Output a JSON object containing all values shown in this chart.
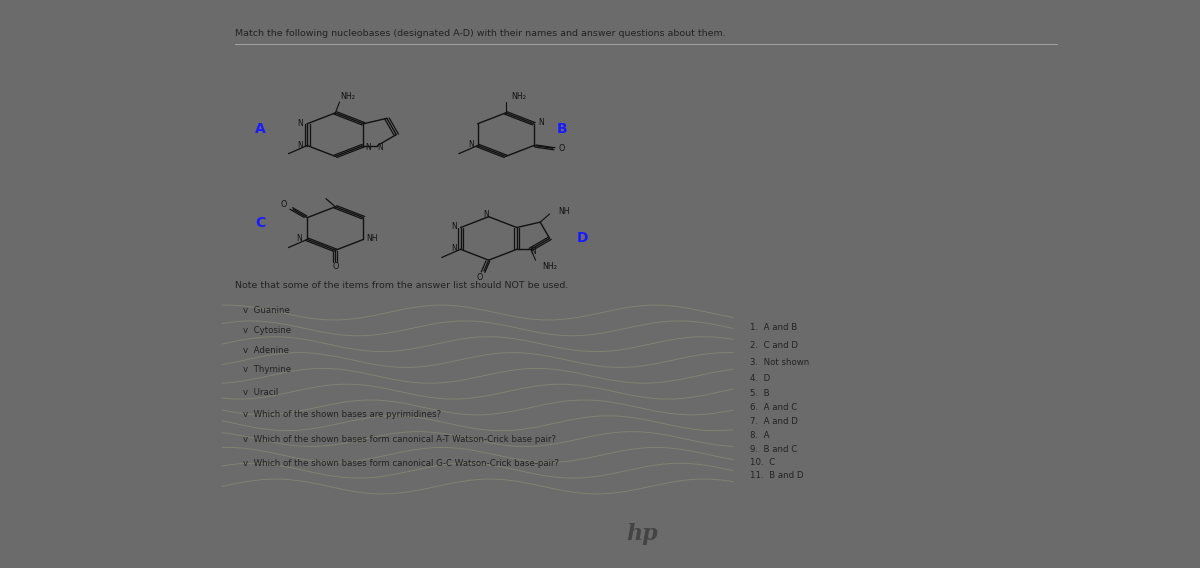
{
  "bg_laptop": "#6b6b6b",
  "bg_screen": "#eeeee8",
  "bg_content": "#f2f2ee",
  "bg_bottom_bezel": "#7a7a7a",
  "title": "Match the following nucleobases (designated A-D) with their names and answer questions about them.",
  "note": "Note that some of the items from the answer list should NOT be used.",
  "left_items": [
    "v  Guanine",
    "v  Cytosine",
    "v  Adenine",
    "v  Thymine",
    "v  Uracil",
    "v  Which of the shown bases are pyrimidines?",
    "v  Which of the shown bases form canonical A-T Watson-Crick base pair?",
    "v  Which of the shown bases form canonical G-C Watson-Crick base-pair?"
  ],
  "right_items": [
    "1.  A and B",
    "2.  C and D",
    "3.  Not shown",
    "4.  D",
    "5.  B",
    "6.  A and C",
    "7.  A and D",
    "8.  A",
    "9.  B and C",
    "10.  C",
    "11.  B and D"
  ],
  "hp_logo": "hp",
  "red_btn_color": "#cc1111",
  "text_color": "#222222",
  "label_color": "#1a1aff",
  "line_color": "#111111"
}
